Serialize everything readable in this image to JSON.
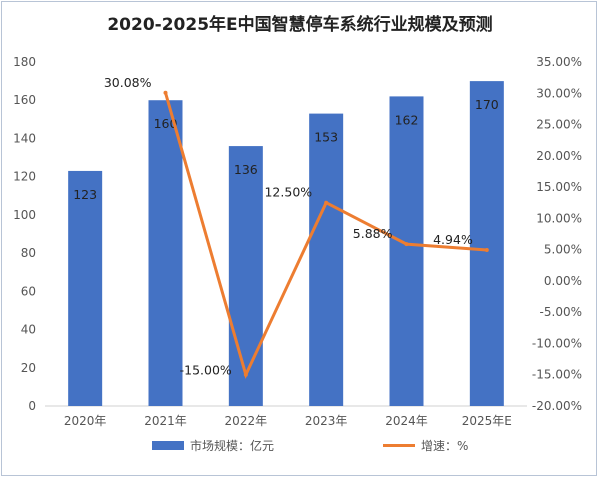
{
  "chart_data": {
    "type": "bar+line",
    "title": "2020-2025年E中国智慧停车系统行业规模及预测",
    "categories": [
      "2020年",
      "2021年",
      "2022年",
      "2023年",
      "2024年",
      "2025年E"
    ],
    "series": [
      {
        "name": "市场规模：亿元",
        "type": "bar",
        "axis": "left",
        "color": "#4472c4",
        "values": [
          123,
          160,
          136,
          153,
          162,
          170
        ],
        "labels": [
          "123",
          "160",
          "136",
          "153",
          "162",
          "170"
        ]
      },
      {
        "name": "增速：%",
        "type": "line",
        "axis": "right",
        "color": "#ed7d31",
        "values": [
          null,
          30.08,
          -15.0,
          12.5,
          5.88,
          4.94
        ],
        "labels": [
          "",
          "30.08%",
          "-15.00%",
          "12.50%",
          "5.88%",
          "4.94%"
        ]
      }
    ],
    "y_left": {
      "lim": [
        0,
        180
      ],
      "ticks": [
        "0",
        "20",
        "40",
        "60",
        "80",
        "100",
        "120",
        "140",
        "160",
        "180"
      ]
    },
    "y_right": {
      "lim": [
        -20,
        35
      ],
      "ticks": [
        "-20.00%",
        "-15.00%",
        "-10.00%",
        "-5.00%",
        "0.00%",
        "5.00%",
        "10.00%",
        "15.00%",
        "20.00%",
        "25.00%",
        "30.00%",
        "35.00%"
      ]
    },
    "grid": false,
    "legend": "bottom"
  }
}
